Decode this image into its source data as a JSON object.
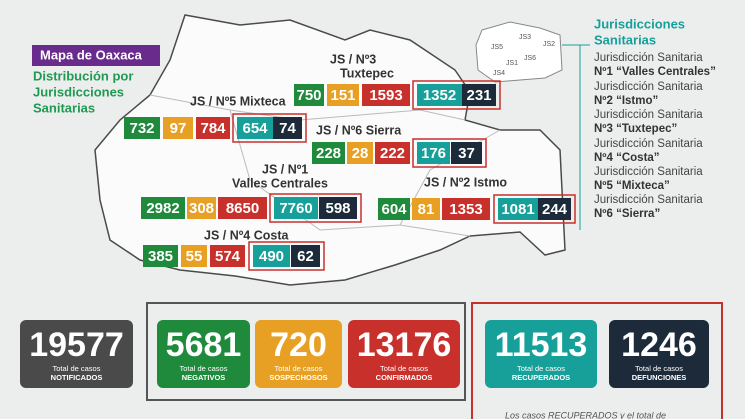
{
  "header": {
    "title": "Mapa de Oaxaca",
    "subtitle": [
      "Distribución por",
      "Jurisdicciones",
      "Sanitarias"
    ]
  },
  "legend": {
    "title": [
      "Jurisdicciones",
      "Sanitarias"
    ],
    "items": [
      [
        "Jurisdicción Sanitaria",
        "Nº1 “Valles Centrales”"
      ],
      [
        "Jurisdicción Sanitaria",
        "Nº2 “Istmo”"
      ],
      [
        "Jurisdicción Sanitaria",
        "Nº3 “Tuxtepec”"
      ],
      [
        "Jurisdicción Sanitaria",
        "Nº4 “Costa”"
      ],
      [
        "Jurisdicción Sanitaria",
        "Nº5 “Mixteca”"
      ],
      [
        "Jurisdicción Sanitaria",
        "Nº6 “Sierra”"
      ]
    ]
  },
  "mini_map": [
    "JS5",
    "JS3",
    "JS2",
    "JS6",
    "JS1",
    "JS4"
  ],
  "regions": [
    {
      "label": [
        "JS / Nº3",
        "Tuxtepec"
      ],
      "values": [
        750,
        151,
        1593,
        1352,
        231
      ]
    },
    {
      "label": [
        "JS / Nº5 Mixteca"
      ],
      "values": [
        732,
        97,
        784,
        654,
        74
      ]
    },
    {
      "label": [
        "JS / Nº6 Sierra"
      ],
      "values": [
        228,
        28,
        222,
        176,
        37
      ]
    },
    {
      "label": [
        "JS / Nº1",
        "Valles Centrales"
      ],
      "values": [
        2982,
        308,
        8650,
        7760,
        598
      ]
    },
    {
      "label": [
        "JS / Nº2 Istmo"
      ],
      "values": [
        604,
        81,
        1353,
        1081,
        244
      ]
    },
    {
      "label": [
        "JS / Nº4 Costa"
      ],
      "values": [
        385,
        55,
        574,
        490,
        62
      ]
    }
  ],
  "totals": [
    {
      "value": 19577,
      "label": "Total de casos",
      "category": "NOTIFICADOS"
    },
    {
      "value": 5681,
      "label": "Total de casos",
      "category": "NEGATIVOS"
    },
    {
      "value": 720,
      "label": "Total de casos",
      "category": "SOSPECHOSOS"
    },
    {
      "value": 13176,
      "label": "Total de casos",
      "category": "CONFIRMADOS"
    },
    {
      "value": 11513,
      "label": "Total de casos",
      "category": "RECUPERADOS"
    },
    {
      "value": 1246,
      "label": "Total de casos",
      "category": "DEFUNCIONES"
    }
  ],
  "footnote": "Los casos RECUPERADOS y el total de"
}
